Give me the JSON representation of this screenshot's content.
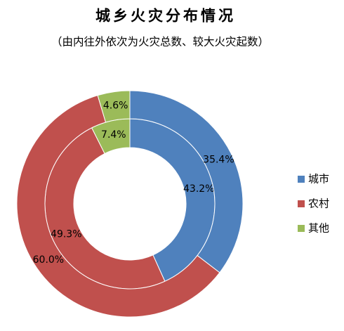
{
  "chart_data": {
    "type": "doughnut",
    "title": "城乡火灾分布情况",
    "subtitle": "（由内往外依次为火灾总数、较大火灾起数）",
    "categories": [
      "城市",
      "农村",
      "其他"
    ],
    "colors": [
      "#4f81bd",
      "#c0504d",
      "#9bbb59"
    ],
    "series": [
      {
        "values": [
          43.2,
          49.3,
          7.4
        ],
        "value_labels": [
          "43.2%",
          "49.3%",
          "7.4%"
        ]
      },
      {
        "values": [
          35.4,
          60.0,
          4.6
        ],
        "value_labels": [
          "35.4%",
          "60.0%",
          "4.6%"
        ]
      }
    ],
    "legend": "right"
  }
}
